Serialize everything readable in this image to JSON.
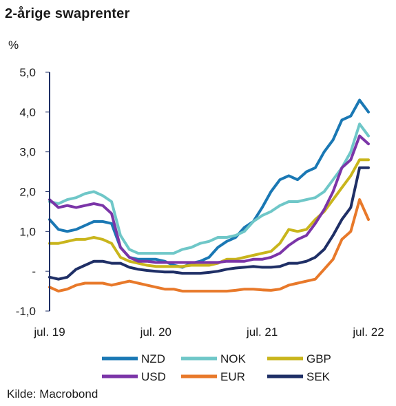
{
  "title": "2-årige swaprenter",
  "unit_label": "%",
  "source": "Kilde: Macrobond",
  "chart_data": {
    "type": "line",
    "title": "2-årige swaprenter",
    "ylabel": "%",
    "xlabel": "",
    "ylim": [
      -1.0,
      5.0
    ],
    "y_ticks": [
      {
        "value": 5.0,
        "label": "5,0"
      },
      {
        "value": 4.0,
        "label": "4,0"
      },
      {
        "value": 3.0,
        "label": "3,0"
      },
      {
        "value": 2.0,
        "label": "2,0"
      },
      {
        "value": 1.0,
        "label": "1,0"
      },
      {
        "value": 0.0,
        "label": "-"
      },
      {
        "value": -1.0,
        "label": "-1,0"
      }
    ],
    "x_range": [
      "2019-07",
      "2022-07"
    ],
    "x_ticks": [
      {
        "value": "2019-07",
        "label": "jul. 19"
      },
      {
        "value": "2020-07",
        "label": "jul. 20"
      },
      {
        "value": "2021-07",
        "label": "jul. 21"
      },
      {
        "value": "2022-07",
        "label": "jul. 22"
      }
    ],
    "grid": false,
    "legend_position": "bottom",
    "series": [
      {
        "name": "NZD",
        "color": "#1a78b4",
        "points": [
          [
            "2019-07",
            1.3
          ],
          [
            "2019-08",
            1.05
          ],
          [
            "2019-09",
            1.0
          ],
          [
            "2019-10",
            1.05
          ],
          [
            "2019-11",
            1.15
          ],
          [
            "2019-12",
            1.25
          ],
          [
            "2020-01",
            1.25
          ],
          [
            "2020-02",
            1.2
          ],
          [
            "2020-03",
            0.6
          ],
          [
            "2020-04",
            0.35
          ],
          [
            "2020-05",
            0.3
          ],
          [
            "2020-06",
            0.3
          ],
          [
            "2020-07",
            0.3
          ],
          [
            "2020-08",
            0.25
          ],
          [
            "2020-09",
            0.15
          ],
          [
            "2020-10",
            0.1
          ],
          [
            "2020-11",
            0.2
          ],
          [
            "2020-12",
            0.25
          ],
          [
            "2021-01",
            0.35
          ],
          [
            "2021-02",
            0.6
          ],
          [
            "2021-03",
            0.75
          ],
          [
            "2021-04",
            0.85
          ],
          [
            "2021-05",
            1.1
          ],
          [
            "2021-06",
            1.25
          ],
          [
            "2021-07",
            1.6
          ],
          [
            "2021-08",
            2.0
          ],
          [
            "2021-09",
            2.3
          ],
          [
            "2021-10",
            2.4
          ],
          [
            "2021-11",
            2.3
          ],
          [
            "2021-12",
            2.5
          ],
          [
            "2022-01",
            2.6
          ],
          [
            "2022-02",
            3.0
          ],
          [
            "2022-03",
            3.3
          ],
          [
            "2022-04",
            3.8
          ],
          [
            "2022-05",
            3.9
          ],
          [
            "2022-06",
            4.3
          ],
          [
            "2022-07",
            4.0
          ]
        ]
      },
      {
        "name": "NOK",
        "color": "#6fc7c8",
        "points": [
          [
            "2019-07",
            1.75
          ],
          [
            "2019-08",
            1.7
          ],
          [
            "2019-09",
            1.8
          ],
          [
            "2019-10",
            1.85
          ],
          [
            "2019-11",
            1.95
          ],
          [
            "2019-12",
            2.0
          ],
          [
            "2020-01",
            1.9
          ],
          [
            "2020-02",
            1.75
          ],
          [
            "2020-03",
            0.9
          ],
          [
            "2020-04",
            0.55
          ],
          [
            "2020-05",
            0.45
          ],
          [
            "2020-06",
            0.45
          ],
          [
            "2020-07",
            0.45
          ],
          [
            "2020-08",
            0.45
          ],
          [
            "2020-09",
            0.45
          ],
          [
            "2020-10",
            0.55
          ],
          [
            "2020-11",
            0.6
          ],
          [
            "2020-12",
            0.7
          ],
          [
            "2021-01",
            0.75
          ],
          [
            "2021-02",
            0.85
          ],
          [
            "2021-03",
            0.85
          ],
          [
            "2021-04",
            0.9
          ],
          [
            "2021-05",
            1.0
          ],
          [
            "2021-06",
            1.25
          ],
          [
            "2021-07",
            1.4
          ],
          [
            "2021-08",
            1.5
          ],
          [
            "2021-09",
            1.65
          ],
          [
            "2021-10",
            1.75
          ],
          [
            "2021-11",
            1.75
          ],
          [
            "2021-12",
            1.8
          ],
          [
            "2022-01",
            1.85
          ],
          [
            "2022-02",
            2.0
          ],
          [
            "2022-03",
            2.3
          ],
          [
            "2022-04",
            2.6
          ],
          [
            "2022-05",
            3.0
          ],
          [
            "2022-06",
            3.7
          ],
          [
            "2022-07",
            3.4
          ]
        ]
      },
      {
        "name": "GBP",
        "color": "#c9b51c",
        "points": [
          [
            "2019-07",
            0.7
          ],
          [
            "2019-08",
            0.7
          ],
          [
            "2019-09",
            0.75
          ],
          [
            "2019-10",
            0.8
          ],
          [
            "2019-11",
            0.8
          ],
          [
            "2019-12",
            0.85
          ],
          [
            "2020-01",
            0.8
          ],
          [
            "2020-02",
            0.7
          ],
          [
            "2020-03",
            0.35
          ],
          [
            "2020-04",
            0.25
          ],
          [
            "2020-05",
            0.2
          ],
          [
            "2020-06",
            0.15
          ],
          [
            "2020-07",
            0.12
          ],
          [
            "2020-08",
            0.12
          ],
          [
            "2020-09",
            0.12
          ],
          [
            "2020-10",
            0.12
          ],
          [
            "2020-11",
            0.15
          ],
          [
            "2020-12",
            0.15
          ],
          [
            "2021-01",
            0.15
          ],
          [
            "2021-02",
            0.2
          ],
          [
            "2021-03",
            0.3
          ],
          [
            "2021-04",
            0.3
          ],
          [
            "2021-05",
            0.35
          ],
          [
            "2021-06",
            0.4
          ],
          [
            "2021-07",
            0.45
          ],
          [
            "2021-08",
            0.5
          ],
          [
            "2021-09",
            0.7
          ],
          [
            "2021-10",
            1.05
          ],
          [
            "2021-11",
            1.0
          ],
          [
            "2021-12",
            1.05
          ],
          [
            "2022-01",
            1.3
          ],
          [
            "2022-02",
            1.5
          ],
          [
            "2022-03",
            1.8
          ],
          [
            "2022-04",
            2.1
          ],
          [
            "2022-05",
            2.4
          ],
          [
            "2022-06",
            2.8
          ],
          [
            "2022-07",
            2.8
          ]
        ]
      },
      {
        "name": "USD",
        "color": "#7b35a8",
        "points": [
          [
            "2019-07",
            1.8
          ],
          [
            "2019-08",
            1.6
          ],
          [
            "2019-09",
            1.65
          ],
          [
            "2019-10",
            1.6
          ],
          [
            "2019-11",
            1.65
          ],
          [
            "2019-12",
            1.7
          ],
          [
            "2020-01",
            1.65
          ],
          [
            "2020-02",
            1.45
          ],
          [
            "2020-03",
            0.6
          ],
          [
            "2020-04",
            0.35
          ],
          [
            "2020-05",
            0.25
          ],
          [
            "2020-06",
            0.25
          ],
          [
            "2020-07",
            0.22
          ],
          [
            "2020-08",
            0.22
          ],
          [
            "2020-09",
            0.22
          ],
          [
            "2020-10",
            0.22
          ],
          [
            "2020-11",
            0.22
          ],
          [
            "2020-12",
            0.22
          ],
          [
            "2021-01",
            0.22
          ],
          [
            "2021-02",
            0.22
          ],
          [
            "2021-03",
            0.25
          ],
          [
            "2021-04",
            0.25
          ],
          [
            "2021-05",
            0.25
          ],
          [
            "2021-06",
            0.3
          ],
          [
            "2021-07",
            0.3
          ],
          [
            "2021-08",
            0.35
          ],
          [
            "2021-09",
            0.45
          ],
          [
            "2021-10",
            0.65
          ],
          [
            "2021-11",
            0.8
          ],
          [
            "2021-12",
            0.9
          ],
          [
            "2022-01",
            1.2
          ],
          [
            "2022-02",
            1.55
          ],
          [
            "2022-03",
            2.0
          ],
          [
            "2022-04",
            2.6
          ],
          [
            "2022-05",
            2.8
          ],
          [
            "2022-06",
            3.4
          ],
          [
            "2022-07",
            3.2
          ]
        ]
      },
      {
        "name": "EUR",
        "color": "#e8792a",
        "points": [
          [
            "2019-07",
            -0.4
          ],
          [
            "2019-08",
            -0.5
          ],
          [
            "2019-09",
            -0.45
          ],
          [
            "2019-10",
            -0.35
          ],
          [
            "2019-11",
            -0.3
          ],
          [
            "2019-12",
            -0.3
          ],
          [
            "2020-01",
            -0.3
          ],
          [
            "2020-02",
            -0.35
          ],
          [
            "2020-03",
            -0.3
          ],
          [
            "2020-04",
            -0.25
          ],
          [
            "2020-05",
            -0.3
          ],
          [
            "2020-06",
            -0.35
          ],
          [
            "2020-07",
            -0.4
          ],
          [
            "2020-08",
            -0.45
          ],
          [
            "2020-09",
            -0.45
          ],
          [
            "2020-10",
            -0.5
          ],
          [
            "2020-11",
            -0.5
          ],
          [
            "2020-12",
            -0.5
          ],
          [
            "2021-01",
            -0.5
          ],
          [
            "2021-02",
            -0.5
          ],
          [
            "2021-03",
            -0.5
          ],
          [
            "2021-04",
            -0.48
          ],
          [
            "2021-05",
            -0.45
          ],
          [
            "2021-06",
            -0.45
          ],
          [
            "2021-07",
            -0.47
          ],
          [
            "2021-08",
            -0.48
          ],
          [
            "2021-09",
            -0.45
          ],
          [
            "2021-10",
            -0.35
          ],
          [
            "2021-11",
            -0.3
          ],
          [
            "2021-12",
            -0.25
          ],
          [
            "2022-01",
            -0.2
          ],
          [
            "2022-02",
            0.05
          ],
          [
            "2022-03",
            0.3
          ],
          [
            "2022-04",
            0.8
          ],
          [
            "2022-05",
            1.0
          ],
          [
            "2022-06",
            1.8
          ],
          [
            "2022-07",
            1.3
          ]
        ]
      },
      {
        "name": "SEK",
        "color": "#1f2f66",
        "points": [
          [
            "2019-07",
            -0.15
          ],
          [
            "2019-08",
            -0.2
          ],
          [
            "2019-09",
            -0.15
          ],
          [
            "2019-10",
            0.05
          ],
          [
            "2019-11",
            0.15
          ],
          [
            "2019-12",
            0.25
          ],
          [
            "2020-01",
            0.25
          ],
          [
            "2020-02",
            0.2
          ],
          [
            "2020-03",
            0.2
          ],
          [
            "2020-04",
            0.1
          ],
          [
            "2020-05",
            0.05
          ],
          [
            "2020-06",
            0.02
          ],
          [
            "2020-07",
            0.0
          ],
          [
            "2020-08",
            -0.02
          ],
          [
            "2020-09",
            -0.02
          ],
          [
            "2020-10",
            -0.05
          ],
          [
            "2020-11",
            -0.05
          ],
          [
            "2020-12",
            -0.05
          ],
          [
            "2021-01",
            -0.03
          ],
          [
            "2021-02",
            0.0
          ],
          [
            "2021-03",
            0.05
          ],
          [
            "2021-04",
            0.08
          ],
          [
            "2021-05",
            0.1
          ],
          [
            "2021-06",
            0.12
          ],
          [
            "2021-07",
            0.1
          ],
          [
            "2021-08",
            0.1
          ],
          [
            "2021-09",
            0.12
          ],
          [
            "2021-10",
            0.2
          ],
          [
            "2021-11",
            0.2
          ],
          [
            "2021-12",
            0.25
          ],
          [
            "2022-01",
            0.35
          ],
          [
            "2022-02",
            0.55
          ],
          [
            "2022-03",
            0.9
          ],
          [
            "2022-04",
            1.3
          ],
          [
            "2022-05",
            1.6
          ],
          [
            "2022-06",
            2.6
          ],
          [
            "2022-07",
            2.6
          ]
        ]
      }
    ]
  }
}
